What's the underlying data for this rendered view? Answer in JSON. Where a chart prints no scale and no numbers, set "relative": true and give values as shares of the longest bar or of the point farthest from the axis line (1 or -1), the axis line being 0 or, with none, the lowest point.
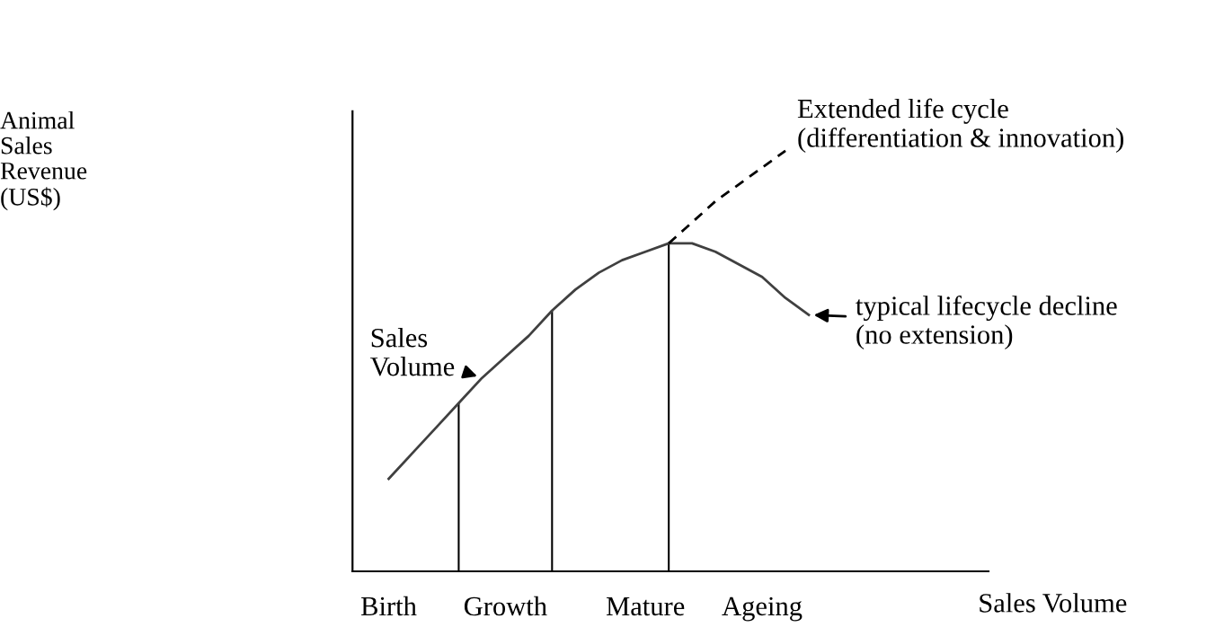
{
  "chart_data": {
    "type": "line",
    "relative": true,
    "xlabel": "Sales Volume",
    "categories": [
      "Birth",
      null,
      null,
      null,
      null,
      "Growth",
      null,
      null,
      null,
      null,
      null,
      "Mature",
      null,
      null,
      null,
      null,
      "Ageing",
      null,
      null,
      null,
      null,
      null,
      null,
      null,
      null,
      null
    ],
    "series": [
      {
        "color": "#404040",
        "line_style": "solid",
        "values": [
          0.22,
          0.28,
          0.34,
          0.4,
          0.46,
          0.51,
          0.56,
          0.62,
          0.67,
          0.71,
          0.74,
          0.76,
          0.78,
          0.78,
          0.76,
          0.73,
          0.7,
          0.65,
          0.61,
          null,
          null,
          null,
          null,
          null,
          null,
          null
        ]
      },
      {
        "type": "line",
        "color": "#000000",
        "line_style": "dashed",
        "values": [
          null,
          null,
          null,
          null,
          null,
          null,
          null,
          null,
          null,
          null,
          null,
          null,
          0.78,
          0.83,
          0.88,
          0.92,
          0.96,
          1.0,
          null,
          null,
          null,
          null,
          null,
          null,
          null,
          null
        ]
      },
      {
        "type": "bar",
        "color": "#000000",
        "values": [
          null,
          null,
          null,
          0.4,
          null,
          null,
          null,
          0.62,
          null,
          null,
          null,
          null,
          0.78,
          null,
          null,
          null,
          null,
          null,
          null,
          null,
          null,
          null,
          null,
          null,
          null,
          null
        ]
      }
    ],
    "annotations": [
      "Animal\nSales\nRevenue\n(US$)",
      "Sales\nVolume",
      "Extended life cycle\n(differentiation & innovation)",
      "typical lifecycle decline\n(no extension)"
    ],
    "grid": false,
    "legend": false
  }
}
